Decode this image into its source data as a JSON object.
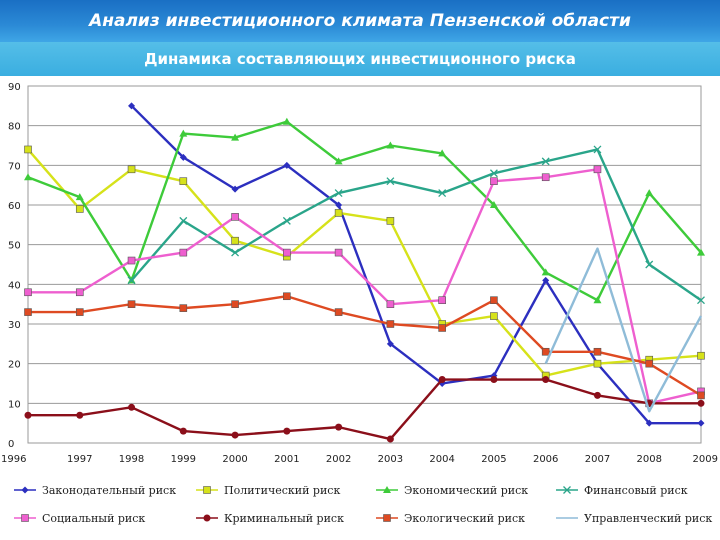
{
  "header": {
    "title": "Анализ инвестиционного климата Пензенской области"
  },
  "chart_data": {
    "type": "line",
    "title": "Динамика составляющих инвестиционного риска",
    "xlabel": "",
    "ylabel": "",
    "categories": [
      "1996",
      "1997",
      "1998",
      "1999",
      "2000",
      "2001",
      "2002",
      "2003",
      "2004",
      "2005",
      "2006",
      "2007",
      "2008",
      "2009"
    ],
    "yticks": [
      "0",
      "10",
      "20",
      "30",
      "40",
      "50",
      "60",
      "70",
      "80",
      "90"
    ],
    "ylim": [
      0,
      90
    ],
    "grid": "horizontal",
    "legend_position": "bottom",
    "series": [
      {
        "name": "Законодательный риск",
        "color": "#2c2fbf",
        "marker": "diamond",
        "values": [
          null,
          null,
          85,
          72,
          64,
          70,
          60,
          25,
          15,
          17,
          41,
          20,
          5,
          5
        ]
      },
      {
        "name": "Политический риск",
        "color": "#d6e21a",
        "marker": "square",
        "values": [
          74,
          59,
          69,
          66,
          51,
          47,
          58,
          56,
          30,
          32,
          17,
          20,
          21,
          22
        ]
      },
      {
        "name": "Экономический риск",
        "color": "#3ecb3a",
        "marker": "triangle",
        "values": [
          67,
          62,
          41,
          78,
          77,
          81,
          71,
          75,
          73,
          60,
          43,
          36,
          63,
          48
        ]
      },
      {
        "name": "Финансовый риск",
        "color": "#2aa58a",
        "marker": "x",
        "values": [
          null,
          null,
          41,
          56,
          48,
          56,
          63,
          66,
          63,
          68,
          71,
          74,
          45,
          36
        ]
      },
      {
        "name": "Социальный риск",
        "color": "#ee5fcf",
        "marker": "square",
        "values": [
          38,
          38,
          46,
          48,
          57,
          48,
          48,
          35,
          36,
          66,
          67,
          69,
          10,
          13
        ]
      },
      {
        "name": "Криминальный риск",
        "color": "#8b0f1a",
        "marker": "circle",
        "values": [
          7,
          7,
          9,
          3,
          2,
          3,
          4,
          1,
          16,
          16,
          16,
          12,
          10,
          10
        ]
      },
      {
        "name": "Экологический риск",
        "color": "#de4a22",
        "marker": "square",
        "values": [
          33,
          33,
          35,
          34,
          35,
          37,
          33,
          30,
          29,
          36,
          23,
          23,
          20,
          12
        ]
      },
      {
        "name": "Управленческий риск",
        "color": "#8fbcd8",
        "marker": "none",
        "values": [
          null,
          null,
          null,
          null,
          null,
          null,
          null,
          null,
          null,
          null,
          20,
          49,
          8,
          32
        ]
      }
    ]
  }
}
